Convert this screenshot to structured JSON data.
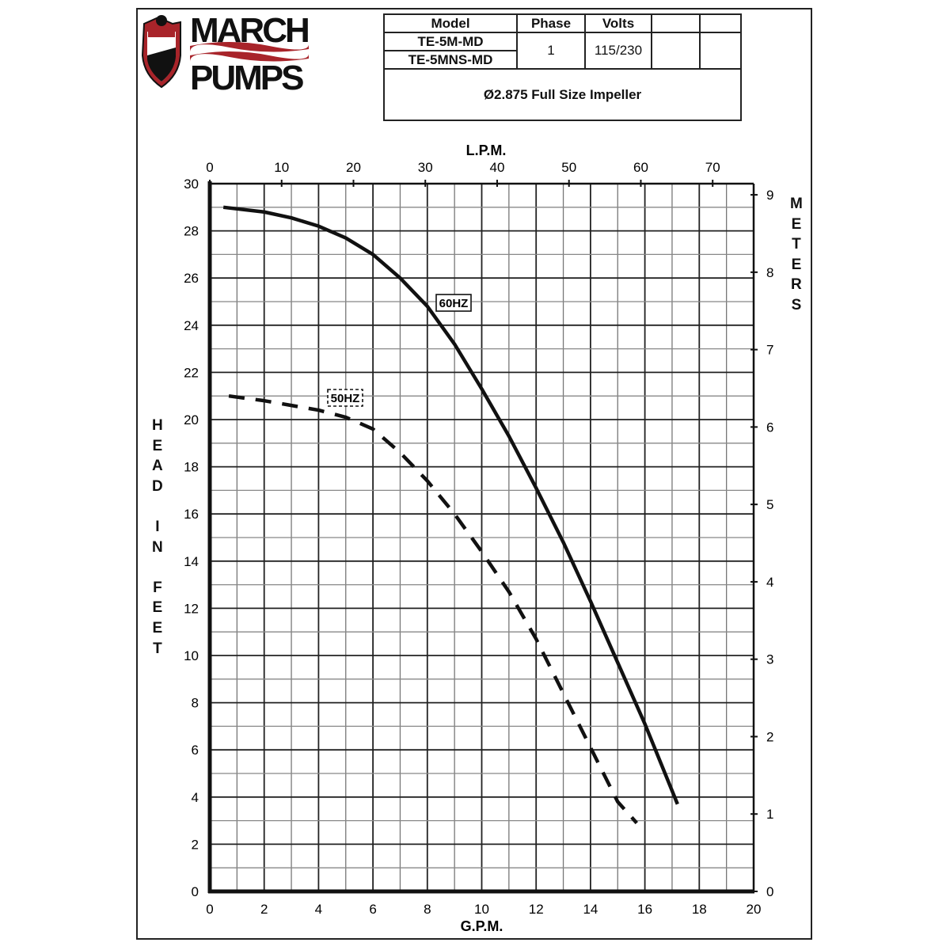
{
  "logo": {
    "brand_top": "MARCH",
    "brand_bottom": "PUMPS",
    "shield_text": "MARCH",
    "colors": {
      "red": "#a8242a",
      "black": "#111111"
    }
  },
  "spec_table": {
    "headers": [
      "Model",
      "Phase",
      "Volts",
      "",
      ""
    ],
    "models": [
      "TE-5M-MD",
      "TE-5MNS-MD"
    ],
    "phase": "1",
    "volts": "115/230",
    "impeller": "Ø2.875 Full Size Impeller"
  },
  "chart_data": {
    "type": "line",
    "xlabel": "G.P.M.",
    "x2label": "L.P.M.",
    "ylabel": "HEAD IN FEET",
    "y2label": "METERS",
    "xlim": [
      0,
      20
    ],
    "ylim": [
      0,
      30
    ],
    "x_ticks": [
      0,
      2,
      4,
      6,
      8,
      10,
      12,
      14,
      16,
      18,
      20
    ],
    "y_ticks": [
      0,
      2,
      4,
      6,
      8,
      10,
      12,
      14,
      16,
      18,
      20,
      22,
      24,
      26,
      28,
      30
    ],
    "x2_ticks": [
      0,
      10,
      20,
      30,
      40,
      50,
      60,
      70
    ],
    "y2_ticks": [
      0,
      1,
      2,
      3,
      4,
      5,
      6,
      7,
      8,
      9
    ],
    "grid": true,
    "series": [
      {
        "name": "60HZ",
        "style": "solid",
        "x": [
          0.5,
          2,
          3,
          4,
          5,
          6,
          7,
          8,
          9,
          10,
          11,
          12,
          13,
          14,
          15,
          16,
          17.2
        ],
        "y": [
          29,
          28.8,
          28.55,
          28.2,
          27.7,
          27,
          26,
          24.8,
          23.2,
          21.3,
          19.3,
          17.1,
          14.8,
          12.3,
          9.7,
          7.1,
          3.7
        ]
      },
      {
        "name": "50HZ",
        "style": "dashed",
        "x": [
          0.7,
          2,
          3,
          4,
          5,
          6,
          7,
          8,
          9,
          10,
          11,
          12,
          13,
          14,
          15,
          15.7
        ],
        "y": [
          21,
          20.8,
          20.6,
          20.4,
          20.1,
          19.6,
          18.6,
          17.4,
          16,
          14.4,
          12.7,
          10.7,
          8.4,
          6.1,
          3.8,
          2.9
        ]
      }
    ]
  }
}
